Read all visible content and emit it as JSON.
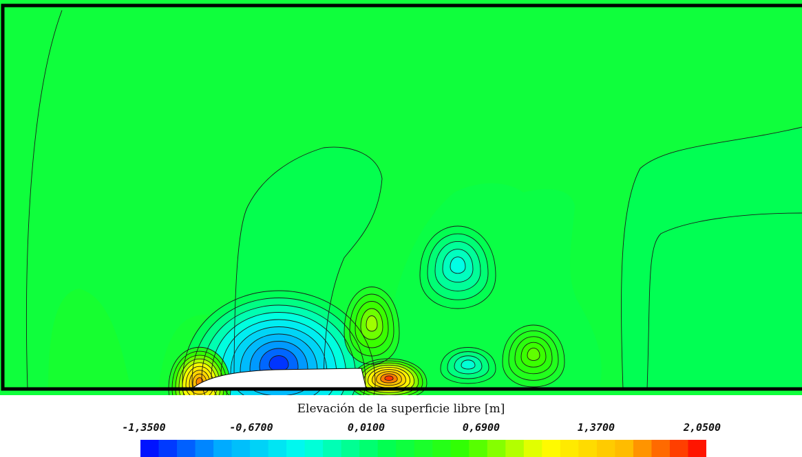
{
  "chart_data": {
    "type": "heatmap",
    "title": "",
    "colorbar": {
      "title": "Elevación de la superficie libre [m]",
      "min": -1.35,
      "max": 2.05,
      "tick_values": [
        -1.35,
        -0.67,
        0.01,
        0.69,
        1.37,
        2.05
      ],
      "tick_labels": [
        "-1,3500",
        "-0,6700",
        "0,0100",
        "0,6900",
        "1,3700",
        "2,0500"
      ],
      "n_bands": 31,
      "colors": [
        "#0000ff",
        "#00aaff",
        "#00ffee",
        "#00ff55",
        "#33ff00",
        "#ffff00",
        "#ffbb00",
        "#ff0000"
      ]
    },
    "background_level": 0.25,
    "obstacle_fill": "#ffffff",
    "features": [
      {
        "kind": "trough",
        "value": -1.2
      },
      {
        "kind": "crest",
        "value": 1.7
      },
      {
        "kind": "crest",
        "value": 1.9
      },
      {
        "kind": "crest",
        "value": 0.85
      },
      {
        "kind": "crest",
        "value": 0.7
      },
      {
        "kind": "trough",
        "value": -0.35
      },
      {
        "kind": "trough",
        "value": -0.3
      }
    ]
  }
}
